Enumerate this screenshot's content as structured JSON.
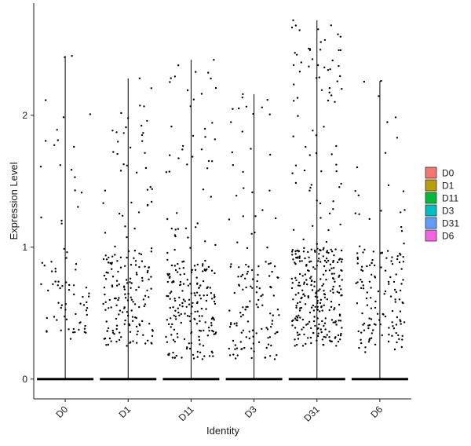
{
  "chart_data": {
    "type": "scatter",
    "subtype": "violin-jitter",
    "xlabel": "Identity",
    "ylabel": "Expression Level",
    "ylim": [
      -0.15,
      2.85
    ],
    "yticks": [
      0,
      1,
      2
    ],
    "grid": false,
    "legend": {
      "placement": "right",
      "items": [
        {
          "label": "D0",
          "color": "#F8766D"
        },
        {
          "label": "D1",
          "color": "#B79F00"
        },
        {
          "label": "D11",
          "color": "#00BA38"
        },
        {
          "label": "D3",
          "color": "#00BFC4"
        },
        {
          "label": "D31",
          "color": "#619CFF"
        },
        {
          "label": "D6",
          "color": "#F564E3"
        }
      ]
    },
    "groups": [
      {
        "name": "D0",
        "max": 2.45,
        "n_expressing": 80,
        "band_bottom": 0.3,
        "band_top": 0.9
      },
      {
        "name": "D1",
        "max": 2.28,
        "n_expressing": 190,
        "band_bottom": 0.25,
        "band_top": 1.0
      },
      {
        "name": "D11",
        "max": 2.42,
        "n_expressing": 230,
        "band_bottom": 0.15,
        "band_top": 0.9
      },
      {
        "name": "D3",
        "max": 2.16,
        "n_expressing": 140,
        "band_bottom": 0.15,
        "band_top": 0.9
      },
      {
        "name": "D31",
        "max": 2.72,
        "n_expressing": 330,
        "band_bottom": 0.25,
        "band_top": 1.0
      },
      {
        "name": "D6",
        "max": 2.26,
        "n_expressing": 150,
        "band_bottom": 0.2,
        "band_top": 1.0
      }
    ],
    "point_color": "#000000",
    "zero_line_color": "#000000"
  }
}
